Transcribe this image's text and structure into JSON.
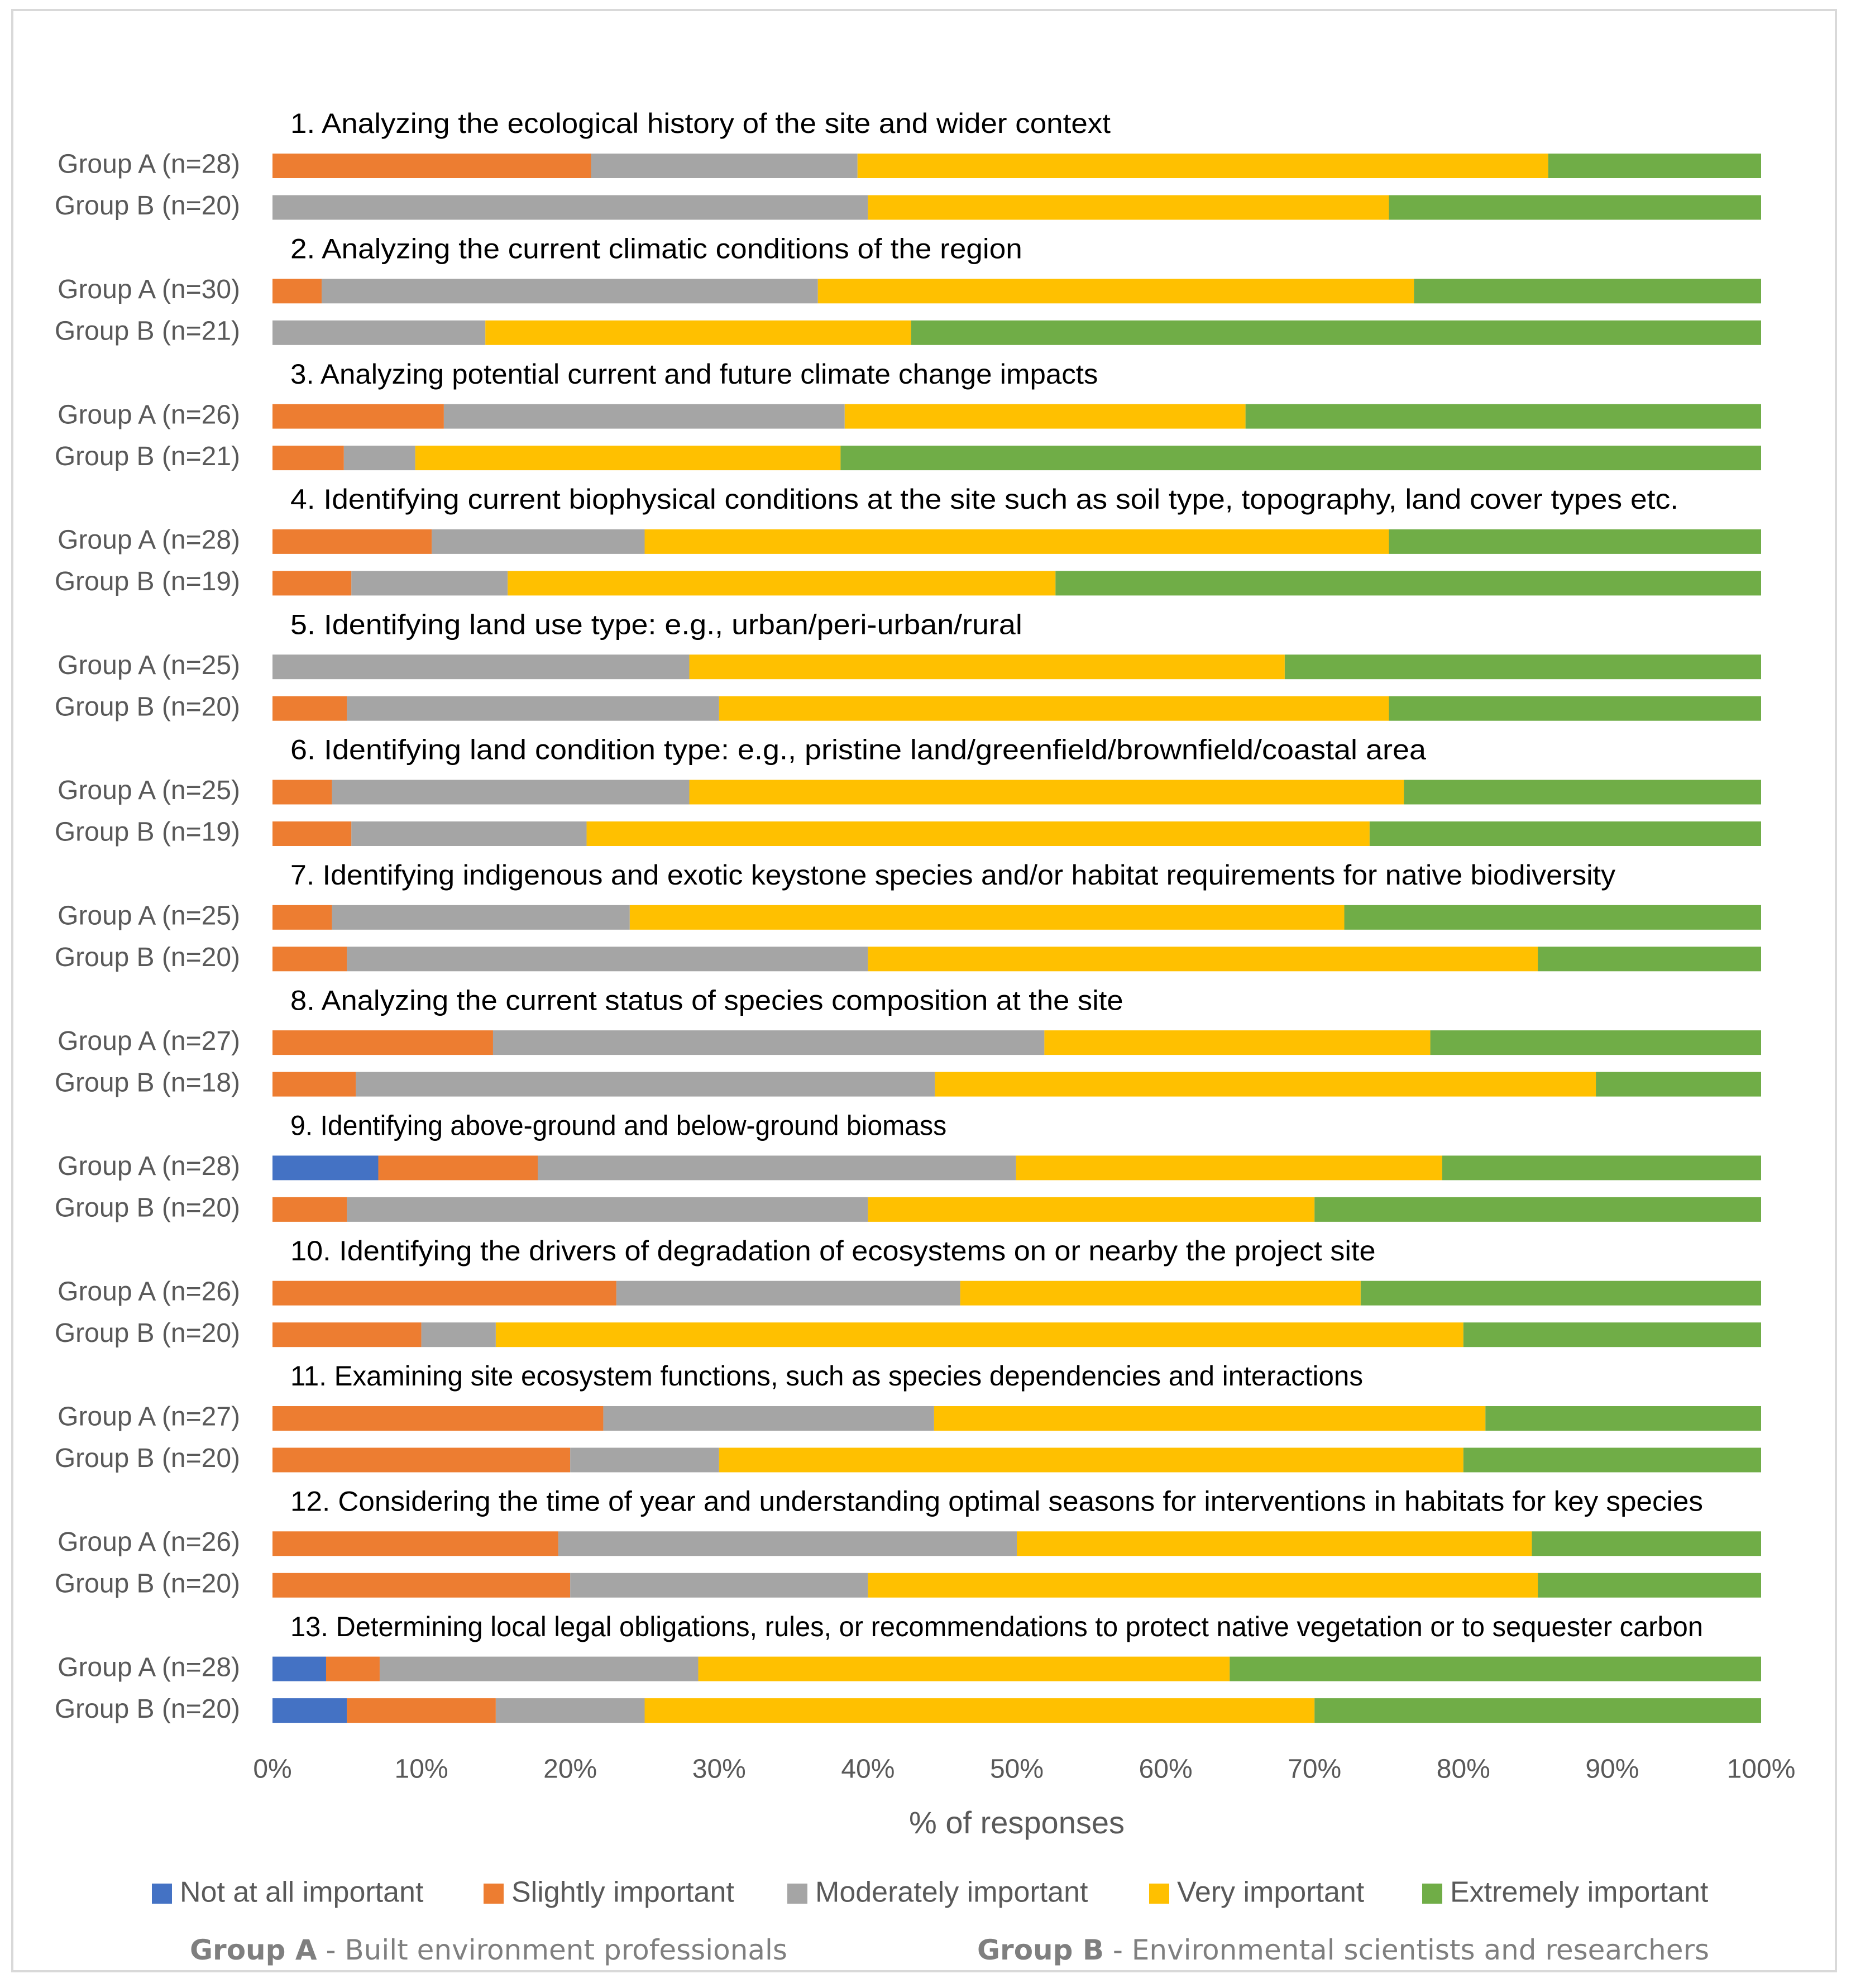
{
  "chart_data": {
    "type": "bar",
    "orientation": "horizontal",
    "stacked": "percent",
    "xlabel": "% of responses",
    "xlim": [
      0,
      100
    ],
    "x_ticks": [
      "0%",
      "10%",
      "20%",
      "30%",
      "40%",
      "50%",
      "60%",
      "70%",
      "80%",
      "90%",
      "100%"
    ],
    "grid": false,
    "legend_position": "bottom",
    "legend": [
      {
        "name": "Not at all important",
        "color": "#4472c4"
      },
      {
        "name": "Slightly important",
        "color": "#ed7d31"
      },
      {
        "name": "Moderately important",
        "color": "#a5a5a5"
      },
      {
        "name": "Very important",
        "color": "#ffc000"
      },
      {
        "name": "Extremely important",
        "color": "#70ad47"
      }
    ],
    "groups": [
      {
        "title": "1. Analyzing the ecological history of the site and wider context",
        "rows": [
          {
            "label": "Group A (n=28)",
            "values": [
              0,
              21.4,
              17.9,
              46.4,
              14.3
            ]
          },
          {
            "label": "Group B (n=20)",
            "values": [
              0,
              0,
              40,
              35,
              25
            ]
          }
        ]
      },
      {
        "title": "2. Analyzing the current climatic conditions of the region",
        "rows": [
          {
            "label": "Group A (n=30)",
            "values": [
              0,
              3.3,
              33.3,
              40,
              23.3
            ]
          },
          {
            "label": "Group B (n=21)",
            "values": [
              0,
              0,
              14.3,
              28.6,
              57.1
            ]
          }
        ]
      },
      {
        "title": "3. Analyzing potential current and future climate change impacts",
        "rows": [
          {
            "label": "Group A (n=26)",
            "values": [
              0,
              11.5,
              26.9,
              26.9,
              34.6
            ]
          },
          {
            "label": "Group B (n=21)",
            "values": [
              0,
              4.8,
              4.8,
              28.6,
              61.9
            ]
          }
        ]
      },
      {
        "title": "4. Identifying current biophysical conditions at the site such as soil type, topography, land cover types etc.",
        "rows": [
          {
            "label": "Group A (n=28)",
            "values": [
              0,
              10.7,
              14.3,
              50,
              25
            ]
          },
          {
            "label": "Group B (n=19)",
            "values": [
              0,
              5.3,
              10.5,
              36.8,
              47.4
            ]
          }
        ]
      },
      {
        "title": "5. Identifying land use type: e.g., urban/peri-urban/rural",
        "rows": [
          {
            "label": "Group A (n=25)",
            "values": [
              0,
              0,
              28,
              40,
              32
            ]
          },
          {
            "label": "Group B (n=20)",
            "values": [
              0,
              5,
              25,
              45,
              25
            ]
          }
        ]
      },
      {
        "title": "6. Identifying land condition type: e.g., pristine land/greenfield/brownfield/coastal area",
        "rows": [
          {
            "label": "Group A (n=25)",
            "values": [
              0,
              4,
              24,
              48,
              24
            ]
          },
          {
            "label": "Group B (n=19)",
            "values": [
              0,
              5.3,
              15.8,
              52.6,
              26.3
            ]
          }
        ]
      },
      {
        "title": "7. Identifying indigenous and exotic keystone species and/or habitat requirements for native biodiversity",
        "rows": [
          {
            "label": "Group A (n=25)",
            "values": [
              0,
              4,
              20,
              48,
              28
            ]
          },
          {
            "label": "Group B (n=20)",
            "values": [
              0,
              5,
              35,
              45,
              15
            ]
          }
        ]
      },
      {
        "title": "8. Analyzing the current status of species composition at the site",
        "rows": [
          {
            "label": "Group A (n=27)",
            "values": [
              0,
              14.8,
              37,
              25.9,
              22.2
            ]
          },
          {
            "label": "Group B (n=18)",
            "values": [
              0,
              5.6,
              38.9,
              44.4,
              11.1
            ]
          }
        ]
      },
      {
        "title": "9. Identifying above-ground and below-ground biomass",
        "rows": [
          {
            "label": "Group A (n=28)",
            "values": [
              7.1,
              10.7,
              32.1,
              28.6,
              21.4
            ]
          },
          {
            "label": "Group B (n=20)",
            "values": [
              0,
              5,
              35,
              30,
              30
            ]
          }
        ]
      },
      {
        "title": "10. Identifying the drivers of degradation of ecosystems on or nearby the project site",
        "rows": [
          {
            "label": "Group A (n=26)",
            "values": [
              0,
              23.1,
              23.1,
              26.9,
              26.9
            ]
          },
          {
            "label": "Group B (n=20)",
            "values": [
              0,
              10,
              5,
              65,
              20
            ]
          }
        ]
      },
      {
        "title": "11. Examining site ecosystem functions, such as species dependencies and interactions",
        "rows": [
          {
            "label": "Group A (n=27)",
            "values": [
              0,
              22.2,
              22.2,
              37,
              18.5
            ]
          },
          {
            "label": "Group B (n=20)",
            "values": [
              0,
              20,
              10,
              50,
              20
            ]
          }
        ]
      },
      {
        "title": "12. Considering the time of year and understanding optimal seasons for interventions in habitats for key species",
        "rows": [
          {
            "label": "Group A (n=26)",
            "values": [
              0,
              19.2,
              30.8,
              34.6,
              15.4
            ]
          },
          {
            "label": "Group B (n=20)",
            "values": [
              0,
              20,
              20,
              45,
              15
            ]
          }
        ]
      },
      {
        "title": "13. Determining local legal obligations, rules, or recommendations to protect native vegetation or to sequester carbon",
        "rows": [
          {
            "label": "Group A (n=28)",
            "values": [
              3.6,
              3.6,
              21.4,
              35.7,
              35.7
            ]
          },
          {
            "label": "Group B (n=20)",
            "values": [
              5,
              10,
              10,
              45,
              30
            ]
          }
        ]
      }
    ]
  },
  "footnote": {
    "group_a_label": "Group A",
    "group_a_desc": " - Built environment professionals",
    "group_b_label": "Group B",
    "group_b_desc": " - Environmental scientists and researchers"
  }
}
